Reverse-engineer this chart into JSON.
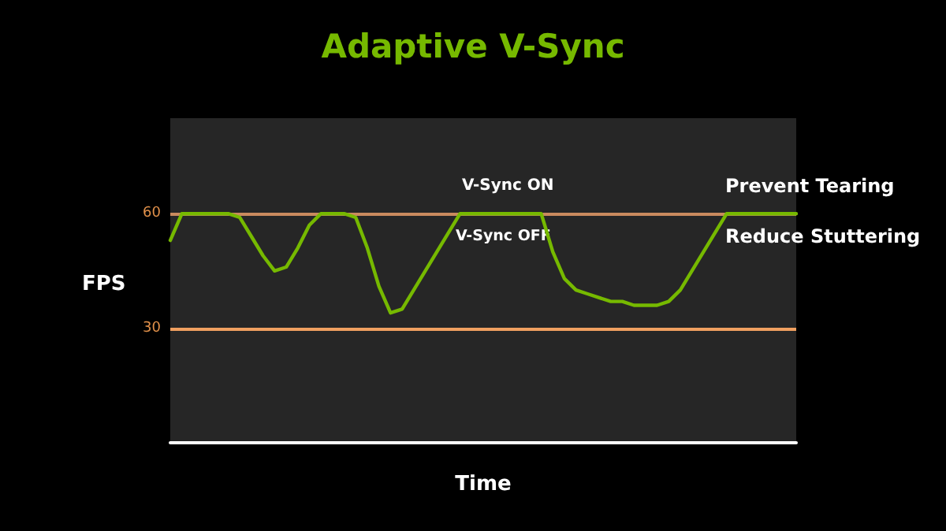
{
  "chart_data": {
    "type": "line",
    "title": "Adaptive V-Sync",
    "xlabel": "Time",
    "ylabel": "FPS",
    "categories": [
      null,
      null,
      null,
      null,
      null,
      null,
      null,
      null,
      null,
      null,
      null,
      null,
      null,
      null,
      null,
      null,
      null,
      null,
      null,
      null,
      null,
      null,
      null,
      null,
      null,
      null,
      null,
      null,
      null,
      null,
      null,
      null,
      null,
      null,
      null,
      null,
      null,
      null,
      null,
      null,
      null,
      null,
      null,
      null,
      null,
      null,
      null,
      null,
      null,
      null,
      null,
      null,
      null,
      null,
      null
    ],
    "series": [
      {
        "color": "#76b900",
        "values": [
          53,
          60,
          60,
          60,
          60,
          60,
          59,
          54,
          49,
          45,
          46,
          51,
          57,
          60,
          60,
          60,
          59,
          51,
          41,
          34,
          35,
          40,
          45,
          50,
          55,
          60,
          60,
          60,
          60,
          60,
          60,
          60,
          60,
          50,
          43,
          40,
          39,
          38,
          37,
          37,
          36,
          36,
          36,
          37,
          40,
          45,
          50,
          55,
          60,
          60,
          60,
          60,
          60,
          60,
          60
        ]
      }
    ],
    "ylim": [
      0,
      85
    ],
    "yticks": [
      30,
      60
    ],
    "tick_labels": "y",
    "ref_lines": [
      {
        "axis": "y",
        "value": 60,
        "label": null,
        "color": "#c98a5e"
      },
      {
        "axis": "y",
        "value": 30,
        "label": null,
        "color": "#f0a060"
      }
    ],
    "annotations": [
      "V-Sync ON",
      "V-Sync OFF",
      "Prevent Tearing",
      "Reduce Stuttering"
    ],
    "grid": false,
    "line_style": "solid"
  }
}
